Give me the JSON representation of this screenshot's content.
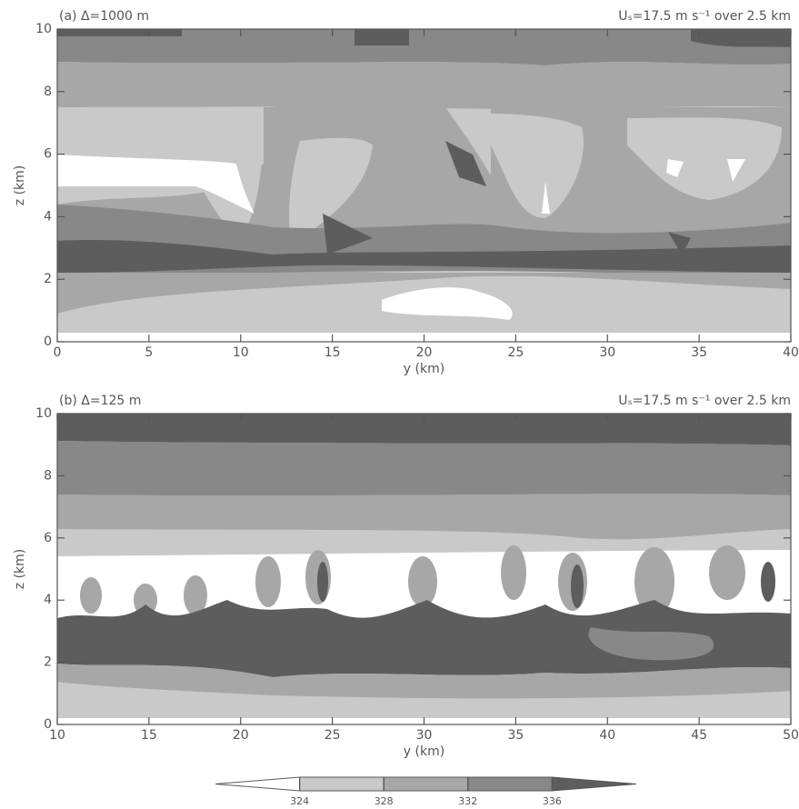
{
  "chart_data": [
    {
      "type": "contour",
      "title": "(a) Δ=1000 m",
      "subtitle": "Uₛ=17.5 m s⁻¹ over 2.5 km",
      "xlabel": "y (km)",
      "ylabel": "z (km)",
      "xlim": [
        0,
        40
      ],
      "ylim": [
        0,
        10
      ],
      "xticks": [
        0,
        5,
        10,
        15,
        20,
        25,
        30,
        35,
        40
      ],
      "yticks": [
        0,
        2,
        4,
        6,
        8,
        10
      ]
    },
    {
      "type": "contour",
      "title": "(b) Δ=125 m",
      "subtitle": "Uₛ=17.5 m s⁻¹ over 2.5 km",
      "xlabel": "y (km)",
      "ylabel": "z (km)",
      "xlim": [
        10,
        50
      ],
      "ylim": [
        0,
        10
      ],
      "xticks": [
        10,
        15,
        20,
        25,
        30,
        35,
        40,
        45,
        50
      ],
      "yticks": [
        0,
        2,
        4,
        6,
        8,
        10
      ]
    }
  ],
  "colorbar": {
    "levels": [
      324,
      328,
      332,
      336
    ],
    "colors": [
      "#ffffff",
      "#c9c9c9",
      "#a7a7a7",
      "#888888",
      "#5d5d5d"
    ]
  }
}
